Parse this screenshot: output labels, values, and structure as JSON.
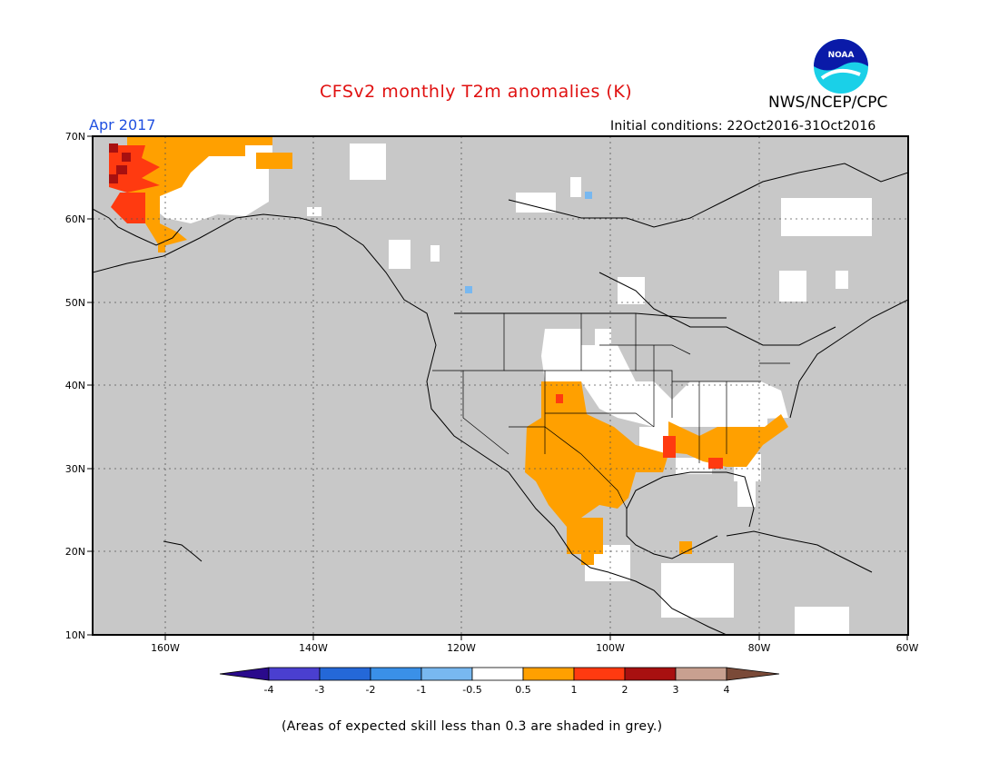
{
  "header": {
    "title": "CFSv2 monthly T2m anomalies (K)",
    "agency": "NWS/NCEP/CPC",
    "logo_text": "NOAA",
    "month": "Apr 2017",
    "initial_conditions": "Initial conditions: 22Oct2016-31Oct2016"
  },
  "map": {
    "lat_labels": [
      "70N",
      "60N",
      "50N",
      "40N",
      "30N",
      "20N",
      "10N"
    ],
    "lon_labels": [
      "160W",
      "140W",
      "120W",
      "100W",
      "80W",
      "60W"
    ],
    "background_grey": "#c8c8c8"
  },
  "legend": {
    "tick_labels": [
      "-4",
      "-3",
      "-2",
      "-1",
      "-0.5",
      "0.5",
      "1",
      "2",
      "3",
      "4"
    ],
    "colors": [
      "#2a0a8c",
      "#4a3fd0",
      "#2468d8",
      "#3a90e8",
      "#78b8f0",
      "#ffffff",
      "#ffa000",
      "#ff3a10",
      "#a81010",
      "#c8a090",
      "#7a4a38"
    ]
  },
  "footnote": "(Areas of expected skill less than 0.3 are shaded in grey.)",
  "colors": {
    "title": "#e01010",
    "month": "#2050e0"
  }
}
